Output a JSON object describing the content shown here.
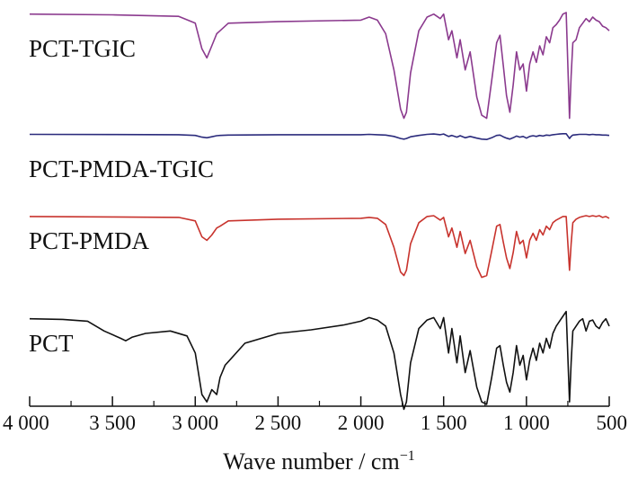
{
  "chart_data": {
    "type": "line",
    "title": "",
    "xlabel": "Wave number / cm",
    "xlabel_superscript": "−1",
    "ylabel": "",
    "xlim": [
      4000,
      500
    ],
    "reversed_x": true,
    "xticks": [
      4000,
      3500,
      3000,
      2500,
      2000,
      1500,
      1000,
      500
    ],
    "xtick_labels": [
      "4 000",
      "3 500",
      "3 000",
      "2 500",
      "2 000",
      "1 500",
      "1 000",
      "500"
    ],
    "y_units": "transmittance (arbitrary, offset)",
    "series": [
      {
        "name": "PCT-TGIC",
        "color": "#8b3a8e",
        "offset": 3,
        "x": [
          4000,
          3500,
          3100,
          3000,
          2960,
          2930,
          2900,
          2870,
          2850,
          2800,
          2500,
          2000,
          1950,
          1900,
          1850,
          1800,
          1760,
          1740,
          1725,
          1700,
          1650,
          1600,
          1560,
          1520,
          1500,
          1470,
          1450,
          1420,
          1400,
          1370,
          1340,
          1300,
          1270,
          1240,
          1210,
          1180,
          1160,
          1140,
          1120,
          1100,
          1080,
          1060,
          1040,
          1020,
          1000,
          980,
          960,
          940,
          920,
          900,
          880,
          860,
          840,
          820,
          800,
          780,
          760,
          740,
          730,
          720,
          700,
          680,
          660,
          640,
          620,
          600,
          580,
          560,
          540,
          520,
          500
        ],
        "y": [
          0.99,
          0.985,
          0.975,
          0.93,
          0.76,
          0.7,
          0.78,
          0.86,
          0.88,
          0.93,
          0.94,
          0.95,
          0.97,
          0.95,
          0.86,
          0.62,
          0.36,
          0.3,
          0.34,
          0.6,
          0.88,
          0.97,
          0.99,
          0.96,
          0.99,
          0.82,
          0.88,
          0.7,
          0.82,
          0.62,
          0.74,
          0.44,
          0.32,
          0.3,
          0.55,
          0.8,
          0.85,
          0.65,
          0.45,
          0.34,
          0.52,
          0.74,
          0.62,
          0.66,
          0.48,
          0.66,
          0.74,
          0.67,
          0.78,
          0.72,
          0.84,
          0.8,
          0.9,
          0.92,
          0.95,
          0.99,
          1.0,
          0.3,
          0.58,
          0.8,
          0.82,
          0.9,
          0.93,
          0.96,
          0.94,
          0.97,
          0.95,
          0.94,
          0.91,
          0.9,
          0.88
        ]
      },
      {
        "name": "PCT-PMDA-TGIC",
        "color": "#2b2b7c",
        "offset": 2,
        "x": [
          4000,
          3500,
          3100,
          3000,
          2960,
          2930,
          2900,
          2870,
          2850,
          2800,
          2500,
          2000,
          1950,
          1900,
          1850,
          1800,
          1760,
          1740,
          1725,
          1700,
          1650,
          1600,
          1560,
          1520,
          1500,
          1470,
          1450,
          1420,
          1400,
          1370,
          1340,
          1300,
          1270,
          1240,
          1210,
          1180,
          1160,
          1140,
          1120,
          1100,
          1080,
          1060,
          1040,
          1020,
          1000,
          980,
          960,
          940,
          920,
          900,
          880,
          860,
          840,
          820,
          800,
          780,
          760,
          740,
          730,
          720,
          700,
          680,
          660,
          640,
          620,
          600,
          580,
          560,
          540,
          520,
          500
        ],
        "y": [
          0.96,
          0.955,
          0.95,
          0.93,
          0.88,
          0.86,
          0.89,
          0.92,
          0.93,
          0.94,
          0.95,
          0.95,
          0.96,
          0.95,
          0.94,
          0.9,
          0.84,
          0.82,
          0.84,
          0.89,
          0.93,
          0.96,
          0.97,
          0.95,
          0.97,
          0.9,
          0.93,
          0.88,
          0.92,
          0.86,
          0.9,
          0.85,
          0.82,
          0.81,
          0.86,
          0.93,
          0.94,
          0.89,
          0.85,
          0.82,
          0.86,
          0.91,
          0.88,
          0.9,
          0.85,
          0.9,
          0.92,
          0.9,
          0.93,
          0.91,
          0.94,
          0.93,
          0.95,
          0.96,
          0.97,
          0.98,
          0.98,
          0.84,
          0.9,
          0.94,
          0.95,
          0.96,
          0.96,
          0.96,
          0.95,
          0.96,
          0.95,
          0.95,
          0.94,
          0.94,
          0.93
        ]
      },
      {
        "name": "PCT-PMDA",
        "color": "#c8332d",
        "offset": 1,
        "x": [
          4000,
          3500,
          3100,
          3000,
          2960,
          2930,
          2900,
          2870,
          2850,
          2800,
          2500,
          2000,
          1950,
          1900,
          1850,
          1800,
          1760,
          1740,
          1725,
          1700,
          1650,
          1600,
          1560,
          1520,
          1500,
          1470,
          1450,
          1420,
          1400,
          1370,
          1340,
          1300,
          1270,
          1240,
          1210,
          1180,
          1160,
          1140,
          1120,
          1100,
          1080,
          1060,
          1040,
          1020,
          1000,
          980,
          960,
          940,
          920,
          900,
          880,
          860,
          840,
          820,
          800,
          780,
          760,
          740,
          730,
          720,
          700,
          680,
          660,
          640,
          620,
          600,
          580,
          560,
          540,
          520,
          500
        ],
        "y": [
          0.97,
          0.965,
          0.96,
          0.92,
          0.74,
          0.7,
          0.76,
          0.84,
          0.86,
          0.92,
          0.94,
          0.95,
          0.96,
          0.95,
          0.88,
          0.62,
          0.34,
          0.3,
          0.36,
          0.66,
          0.9,
          0.97,
          0.98,
          0.93,
          0.96,
          0.74,
          0.84,
          0.62,
          0.8,
          0.55,
          0.7,
          0.4,
          0.28,
          0.3,
          0.58,
          0.86,
          0.88,
          0.68,
          0.5,
          0.38,
          0.56,
          0.8,
          0.66,
          0.7,
          0.5,
          0.7,
          0.78,
          0.7,
          0.82,
          0.76,
          0.86,
          0.82,
          0.9,
          0.93,
          0.95,
          0.97,
          0.97,
          0.36,
          0.66,
          0.9,
          0.94,
          0.96,
          0.97,
          0.98,
          0.97,
          0.98,
          0.97,
          0.98,
          0.96,
          0.97,
          0.95
        ]
      },
      {
        "name": "PCT",
        "color": "#111111",
        "offset": 0,
        "x": [
          4000,
          3800,
          3650,
          3550,
          3450,
          3420,
          3380,
          3300,
          3150,
          3050,
          3000,
          2960,
          2930,
          2900,
          2870,
          2850,
          2820,
          2700,
          2500,
          2300,
          2100,
          2000,
          1950,
          1900,
          1850,
          1800,
          1760,
          1740,
          1725,
          1700,
          1650,
          1600,
          1560,
          1520,
          1500,
          1470,
          1450,
          1420,
          1400,
          1370,
          1340,
          1300,
          1270,
          1240,
          1210,
          1180,
          1160,
          1140,
          1120,
          1100,
          1080,
          1060,
          1040,
          1020,
          1000,
          980,
          960,
          940,
          920,
          900,
          880,
          860,
          840,
          820,
          800,
          780,
          760,
          740,
          730,
          720,
          700,
          680,
          660,
          640,
          620,
          600,
          580,
          560,
          540,
          520,
          500
        ],
        "y": [
          0.98,
          0.975,
          0.96,
          0.88,
          0.82,
          0.8,
          0.83,
          0.86,
          0.88,
          0.84,
          0.7,
          0.36,
          0.3,
          0.4,
          0.36,
          0.5,
          0.6,
          0.78,
          0.86,
          0.89,
          0.93,
          0.96,
          0.99,
          0.97,
          0.92,
          0.7,
          0.36,
          0.24,
          0.3,
          0.62,
          0.9,
          0.97,
          0.99,
          0.9,
          0.99,
          0.7,
          0.9,
          0.62,
          0.84,
          0.54,
          0.72,
          0.42,
          0.3,
          0.28,
          0.5,
          0.74,
          0.76,
          0.6,
          0.46,
          0.38,
          0.54,
          0.76,
          0.6,
          0.68,
          0.48,
          0.64,
          0.74,
          0.64,
          0.78,
          0.7,
          0.82,
          0.74,
          0.86,
          0.92,
          0.96,
          1.0,
          1.04,
          0.3,
          0.62,
          0.88,
          0.92,
          0.96,
          0.98,
          0.88,
          0.96,
          0.97,
          0.92,
          0.9,
          0.95,
          0.98,
          0.92
        ]
      }
    ]
  }
}
